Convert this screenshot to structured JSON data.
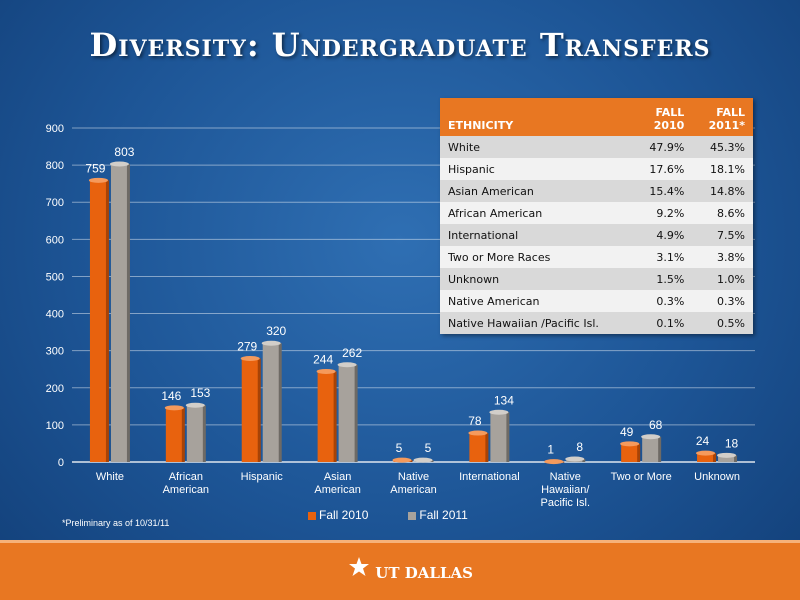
{
  "title": "Diversity: Undergraduate Transfers",
  "footnote": "*Preliminary as of 10/31/11",
  "logo_text": "UT DALLAS",
  "colors": {
    "fall2010": "#e8620e",
    "fall2011": "#a7a29c",
    "accent": "#e87722"
  },
  "chart_data": {
    "type": "bar",
    "categories": [
      "White",
      "African American",
      "Hispanic",
      "Asian American",
      "Native American",
      "International",
      "Native Hawaiian/ Pacific Isl.",
      "Two or More",
      "Unknown"
    ],
    "series": [
      {
        "name": "Fall 2010",
        "values": [
          759,
          146,
          279,
          244,
          5,
          78,
          1,
          49,
          24
        ]
      },
      {
        "name": "Fall 2011",
        "values": [
          803,
          153,
          320,
          262,
          5,
          134,
          8,
          68,
          18
        ]
      }
    ],
    "ylim": [
      0,
      900
    ],
    "yticks": [
      0,
      100,
      200,
      300,
      400,
      500,
      600,
      700,
      800,
      900
    ],
    "grid": true,
    "legend": "bottom"
  },
  "table": {
    "headers": [
      "ETHNICITY",
      "FALL 2010",
      "FALL 2011*"
    ],
    "rows": [
      [
        "White",
        "47.9%",
        "45.3%"
      ],
      [
        "Hispanic",
        "17.6%",
        "18.1%"
      ],
      [
        "Asian American",
        "15.4%",
        "14.8%"
      ],
      [
        "African American",
        "9.2%",
        "8.6%"
      ],
      [
        "International",
        "4.9%",
        "7.5%"
      ],
      [
        "Two or More Races",
        "3.1%",
        "3.8%"
      ],
      [
        "Unknown",
        "1.5%",
        "1.0%"
      ],
      [
        "Native American",
        "0.3%",
        "0.3%"
      ],
      [
        "Native Hawaiian /Pacific Isl.",
        "0.1%",
        "0.5%"
      ]
    ]
  }
}
